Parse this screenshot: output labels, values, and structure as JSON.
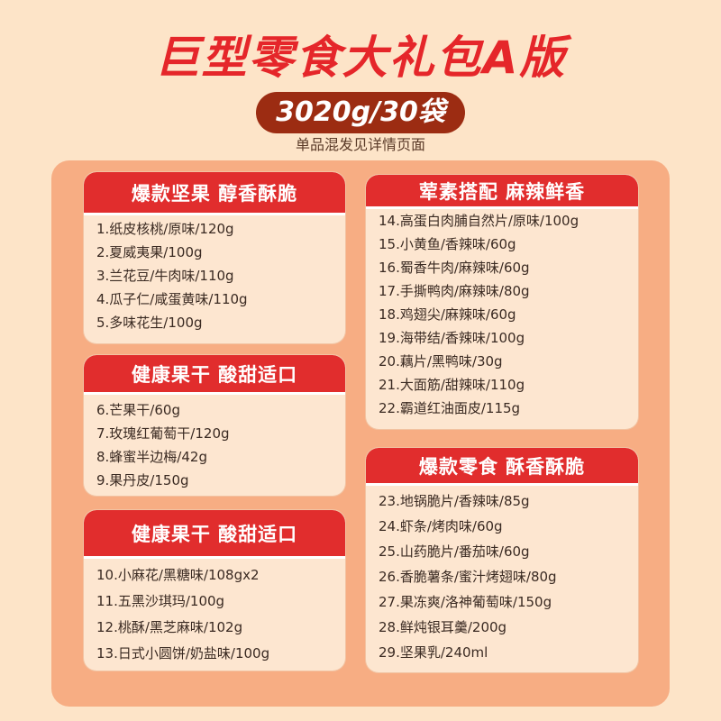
{
  "header": {
    "title": "巨型零食大礼包A版",
    "weight": "3020g/30袋",
    "subtitle": "单品混发见详情页面"
  },
  "cards": [
    {
      "title": "爆款坚果 醇香酥脆",
      "items": [
        "1.纸皮核桃/原味/120g",
        "2.夏威夷果/100g",
        "3.兰花豆/牛肉味/110g",
        "4.瓜子仁/咸蛋黄味/110g",
        "5.多味花生/100g"
      ]
    },
    {
      "title": "健康果干 酸甜适口",
      "items": [
        "6.芒果干/60g",
        "7.玫瑰红葡萄干/120g",
        "8.蜂蜜半边梅/42g",
        "9.果丹皮/150g"
      ]
    },
    {
      "title": "健康果干 酸甜适口",
      "items": [
        "10.小麻花/黑糖味/108gx2",
        "11.五黑沙琪玛/100g",
        "12.桃酥/黑芝麻味/102g",
        "13.日式小圆饼/奶盐味/100g"
      ]
    },
    {
      "title": "荤素搭配 麻辣鲜香",
      "items": [
        "14.高蛋白肉脯自然片/原味/100g",
        "15.小黄鱼/香辣味/60g",
        "16.蜀香牛肉/麻辣味/60g",
        "17.手撕鸭肉/麻辣味/80g",
        "18.鸡翅尖/麻辣味/60g",
        "19.海带结/香辣味/100g",
        "20.藕片/黑鸭味/30g",
        "21.大面筋/甜辣味/110g",
        "22.霸道红油面皮/115g"
      ]
    },
    {
      "title": "爆款零食 酥香酥脆",
      "items": [
        "23.地锅脆片/香辣味/85g",
        "24.虾条/烤肉味/60g",
        "25.山药脆片/番茄味/60g",
        "26.香脆薯条/蜜汁烤翅味/80g",
        "27.果冻爽/洛神葡萄味/150g",
        "28.鲜炖银耳羹/200g",
        "29.坚果乳/240ml"
      ]
    }
  ],
  "colors": {
    "page_bg": "#fde4c8",
    "title_red": "#e5262a",
    "pill_brown": "#9c2c12",
    "panel_orange": "#f7ad83",
    "card_header_red": "#e12d2d",
    "card_bg": "#fde6d0"
  }
}
